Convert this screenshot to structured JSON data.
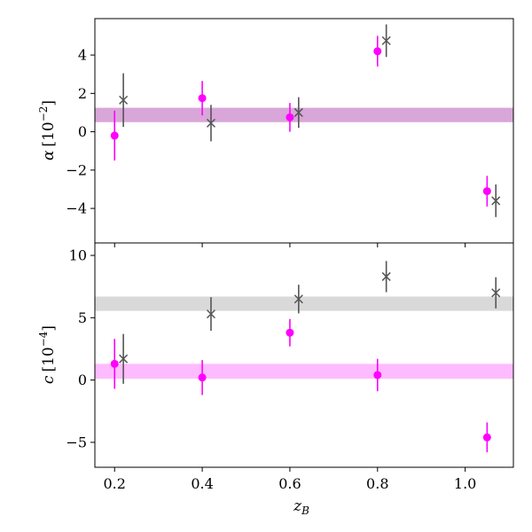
{
  "chart_data": [
    {
      "type": "scatter",
      "panel": "top",
      "ylabel_main": "α",
      "ylabel_unit": "[10",
      "ylabel_exp": "−2",
      "ylabel_close": "]",
      "xlim": [
        0.155,
        1.11
      ],
      "ylim": [
        -5.8,
        5.9
      ],
      "yticks": [
        -4,
        -2,
        0,
        2,
        4
      ],
      "ytick_labels": [
        "−4",
        "−2",
        "0",
        "2",
        "4"
      ],
      "band": {
        "low": 0.5,
        "high": 1.25,
        "color": "#d8a6d8"
      },
      "series": [
        {
          "marker": "circle",
          "color": "#ff00ff",
          "x": [
            0.2,
            0.4,
            0.6,
            0.8,
            1.05
          ],
          "y": [
            -0.2,
            1.75,
            0.75,
            4.2,
            -3.1
          ],
          "err": [
            1.3,
            0.9,
            0.75,
            0.8,
            0.8
          ]
        },
        {
          "marker": "x",
          "color": "#555555",
          "x": [
            0.22,
            0.42,
            0.62,
            0.82,
            1.07
          ],
          "y": [
            1.65,
            0.45,
            1.0,
            4.75,
            -3.6
          ],
          "err": [
            1.4,
            0.95,
            0.8,
            0.85,
            0.85
          ]
        }
      ]
    },
    {
      "type": "scatter",
      "panel": "bottom",
      "ylabel_main": "c",
      "ylabel_unit": "[10",
      "ylabel_exp": "−4",
      "ylabel_close": "]",
      "xlabel_main": "z",
      "xlabel_sub": "B",
      "xlim": [
        0.155,
        1.11
      ],
      "ylim": [
        -7.0,
        11.0
      ],
      "yticks": [
        -5,
        0,
        5,
        10
      ],
      "ytick_labels": [
        "−5",
        "0",
        "5",
        "10"
      ],
      "xticks": [
        0.2,
        0.4,
        0.6,
        0.8,
        1.0
      ],
      "xtick_labels": [
        "0.2",
        "0.4",
        "0.6",
        "0.8",
        "1.0"
      ],
      "bands": [
        {
          "low": 5.55,
          "high": 6.7,
          "color": "#d9d9d9"
        },
        {
          "low": 0.1,
          "high": 1.3,
          "color": "#ffbbff"
        }
      ],
      "series": [
        {
          "marker": "circle",
          "color": "#ff00ff",
          "x": [
            0.2,
            0.4,
            0.6,
            0.8,
            1.05
          ],
          "y": [
            1.3,
            0.2,
            3.8,
            0.4,
            -4.6
          ],
          "err": [
            2.0,
            1.4,
            1.1,
            1.3,
            1.2
          ]
        },
        {
          "marker": "x",
          "color": "#555555",
          "x": [
            0.22,
            0.42,
            0.62,
            0.82,
            1.07
          ],
          "y": [
            1.7,
            5.3,
            6.5,
            8.3,
            7.0
          ],
          "err": [
            2.0,
            1.35,
            1.15,
            1.25,
            1.25
          ]
        }
      ]
    }
  ]
}
